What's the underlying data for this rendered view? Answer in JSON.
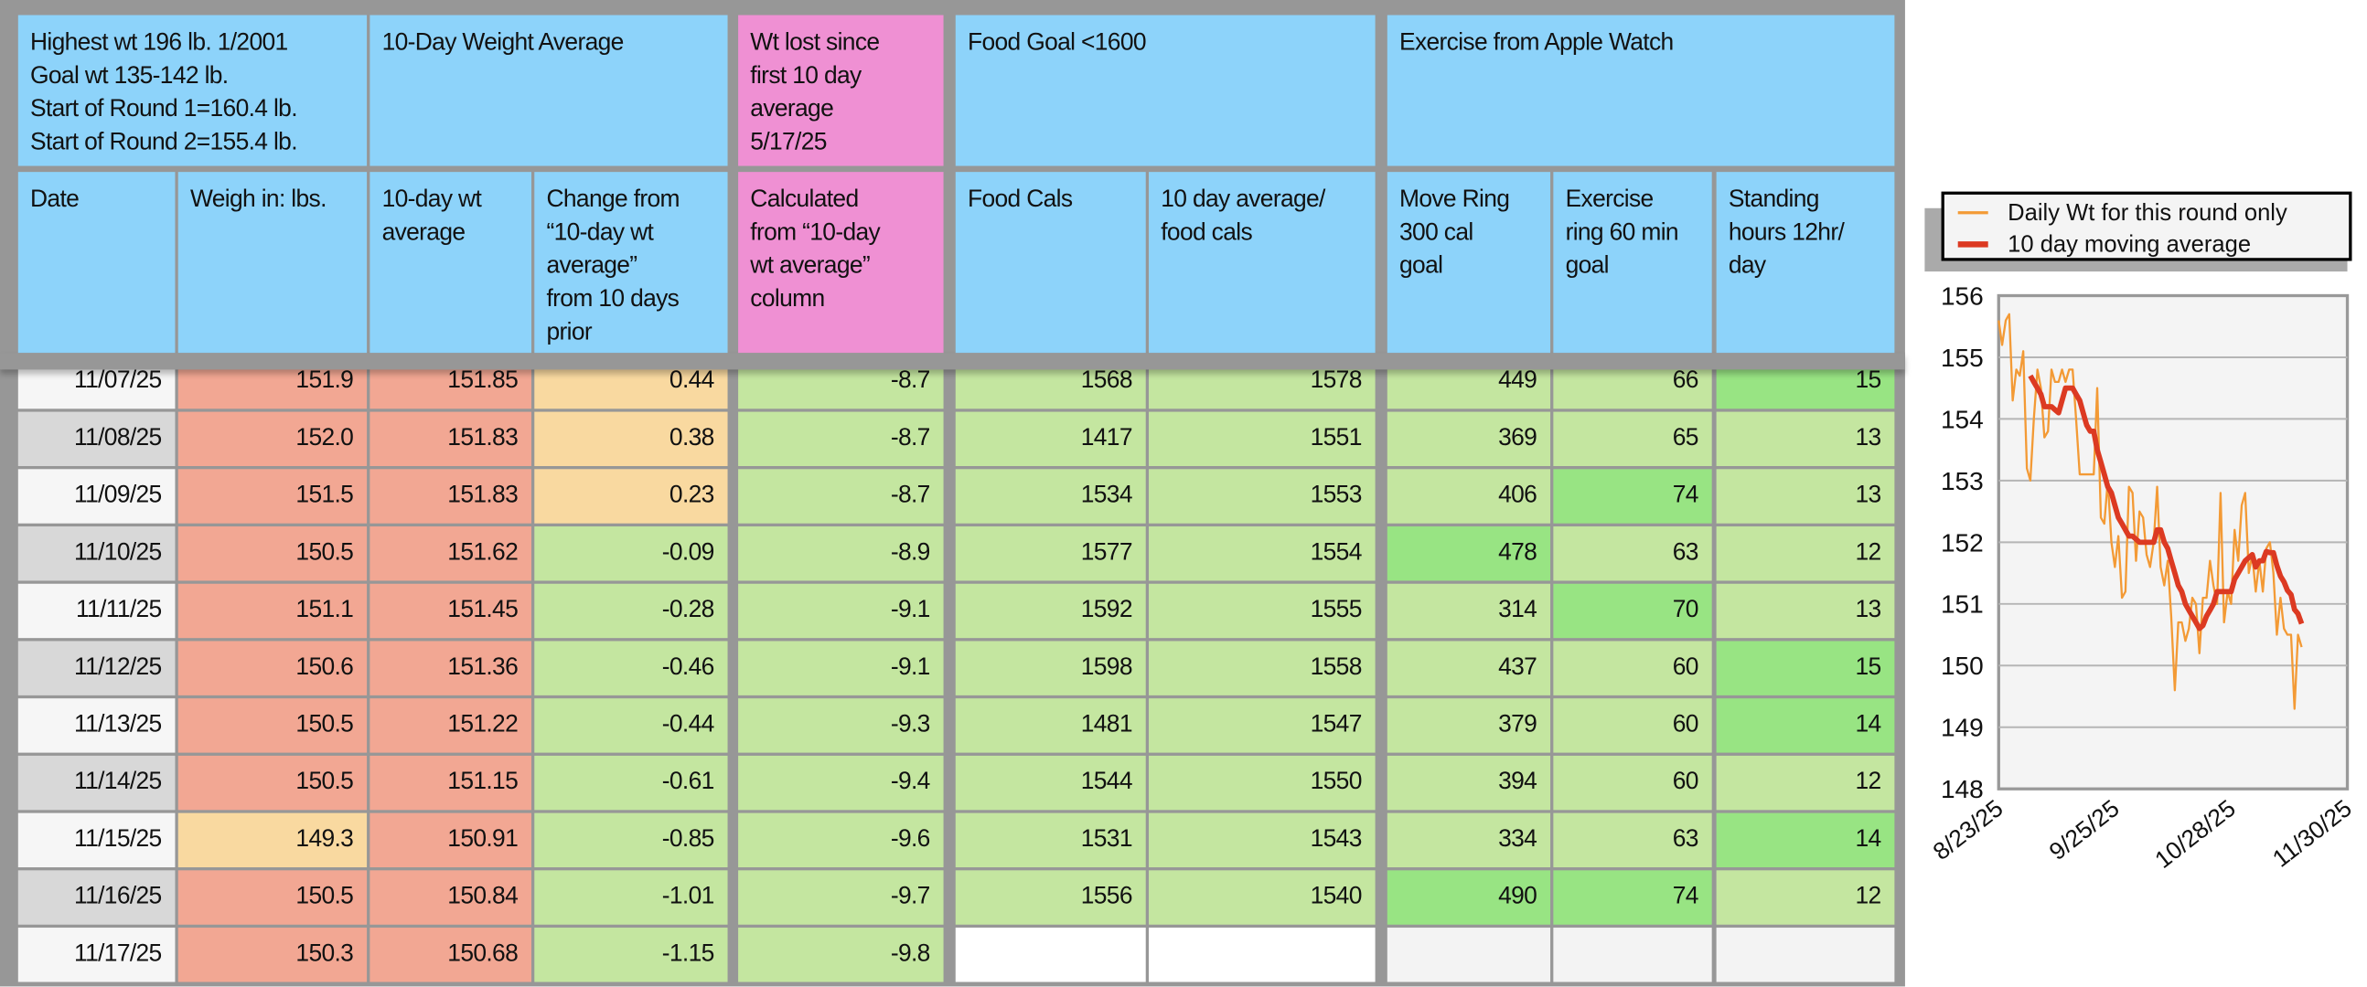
{
  "colors": {
    "header": "#8dd3fa",
    "header_pink": "#ef90d3",
    "salmon": "#f2a793",
    "yellow": "#f9d9a0",
    "green": "#c4e6a0",
    "bright_green": "#98e483",
    "date_light": "#f6f6f6",
    "date_gray": "#d8d8d8",
    "empty_white": "#ffffff",
    "empty_gray": "#f3f3f3"
  },
  "header_groups": [
    {
      "key": "summary",
      "text": "Highest wt 196 lb.  1/2001\nGoal wt 135-142 lb.\nStart of Round 1=160.4 lb.\nStart of Round 2=155.4 lb."
    },
    {
      "key": "avg10",
      "text": "10-Day Weight Average"
    },
    {
      "key": "lost",
      "text": "Wt lost since\nfirst 10 day\naverage\n5/17/25"
    },
    {
      "key": "food",
      "text": "Food Goal <1600"
    },
    {
      "key": "exercise",
      "text": "Exercise from Apple Watch"
    }
  ],
  "columns": [
    {
      "key": "date",
      "label": "Date"
    },
    {
      "key": "weigh",
      "label": "Weigh in: lbs."
    },
    {
      "key": "avg",
      "label": "10-day wt\naverage"
    },
    {
      "key": "change",
      "label": "Change from\n“10-day wt\naverage”\nfrom 10 days\nprior"
    },
    {
      "key": "calc",
      "label": "Calculated\nfrom “10-day\nwt average”\ncolumn"
    },
    {
      "key": "food",
      "label": "Food Cals"
    },
    {
      "key": "favg",
      "label": "10 day average/\nfood cals"
    },
    {
      "key": "move",
      "label": "Move Ring\n300 cal\ngoal"
    },
    {
      "key": "ex",
      "label": "Exercise\nring 60 min\ngoal"
    },
    {
      "key": "stand",
      "label": "Standing\nhours 12hr/\nday"
    }
  ],
  "rows": [
    {
      "date": "11/07/25",
      "weigh": "151.9",
      "avg": "151.85",
      "change": "0.44",
      "calc": "-8.7",
      "food": "1568",
      "favg": "1578",
      "move": "449",
      "ex": "66",
      "stand": "15",
      "fills": {
        "change": "yellow",
        "stand": "bright_green"
      }
    },
    {
      "date": "11/08/25",
      "weigh": "152.0",
      "avg": "151.83",
      "change": "0.38",
      "calc": "-8.7",
      "food": "1417",
      "favg": "1551",
      "move": "369",
      "ex": "65",
      "stand": "13",
      "fills": {
        "change": "yellow"
      }
    },
    {
      "date": "11/09/25",
      "weigh": "151.5",
      "avg": "151.83",
      "change": "0.23",
      "calc": "-8.7",
      "food": "1534",
      "favg": "1553",
      "move": "406",
      "ex": "74",
      "stand": "13",
      "fills": {
        "change": "yellow",
        "ex": "bright_green"
      }
    },
    {
      "date": "11/10/25",
      "weigh": "150.5",
      "avg": "151.62",
      "change": "-0.09",
      "calc": "-8.9",
      "food": "1577",
      "favg": "1554",
      "move": "478",
      "ex": "63",
      "stand": "12",
      "fills": {
        "move": "bright_green"
      }
    },
    {
      "date": "11/11/25",
      "weigh": "151.1",
      "avg": "151.45",
      "change": "-0.28",
      "calc": "-9.1",
      "food": "1592",
      "favg": "1555",
      "move": "314",
      "ex": "70",
      "stand": "13",
      "fills": {
        "ex": "bright_green"
      }
    },
    {
      "date": "11/12/25",
      "weigh": "150.6",
      "avg": "151.36",
      "change": "-0.46",
      "calc": "-9.1",
      "food": "1598",
      "favg": "1558",
      "move": "437",
      "ex": "60",
      "stand": "15",
      "fills": {
        "stand": "bright_green"
      }
    },
    {
      "date": "11/13/25",
      "weigh": "150.5",
      "avg": "151.22",
      "change": "-0.44",
      "calc": "-9.3",
      "food": "1481",
      "favg": "1547",
      "move": "379",
      "ex": "60",
      "stand": "14",
      "fills": {
        "stand": "bright_green"
      }
    },
    {
      "date": "11/14/25",
      "weigh": "150.5",
      "avg": "151.15",
      "change": "-0.61",
      "calc": "-9.4",
      "food": "1544",
      "favg": "1550",
      "move": "394",
      "ex": "60",
      "stand": "12",
      "fills": {}
    },
    {
      "date": "11/15/25",
      "weigh": "149.3",
      "avg": "150.91",
      "change": "-0.85",
      "calc": "-9.6",
      "food": "1531",
      "favg": "1543",
      "move": "334",
      "ex": "63",
      "stand": "14",
      "fills": {
        "weigh": "yellow",
        "stand": "bright_green"
      }
    },
    {
      "date": "11/16/25",
      "weigh": "150.5",
      "avg": "150.84",
      "change": "-1.01",
      "calc": "-9.7",
      "food": "1556",
      "favg": "1540",
      "move": "490",
      "ex": "74",
      "stand": "12",
      "fills": {
        "move": "bright_green",
        "ex": "bright_green"
      }
    },
    {
      "date": "11/17/25",
      "weigh": "150.3",
      "avg": "150.68",
      "change": "-1.15",
      "calc": "-9.8",
      "food": "",
      "favg": "",
      "move": "",
      "ex": "",
      "stand": "",
      "fills": {
        "food": "empty_white",
        "favg": "empty_white",
        "move": "empty_gray",
        "ex": "empty_gray",
        "stand": "empty_gray"
      }
    }
  ],
  "chart_data": {
    "type": "line",
    "title": "",
    "xlabel": "",
    "ylabel": "",
    "ylim": [
      148,
      156
    ],
    "yticks": [
      "156",
      "155",
      "154",
      "153",
      "152",
      "151",
      "150",
      "149",
      "148"
    ],
    "xlim": [
      "8/23/25",
      "11/30/25"
    ],
    "xticks": [
      "8/23/25",
      "9/25/25",
      "10/28/25",
      "11/30/25"
    ],
    "grid": true,
    "legend_placement": "top",
    "x": [
      "8/23/25",
      "8/24/25",
      "8/25/25",
      "8/26/25",
      "8/27/25",
      "8/28/25",
      "8/29/25",
      "8/30/25",
      "8/31/25",
      "9/1/25",
      "9/2/25",
      "9/3/25",
      "9/4/25",
      "9/5/25",
      "9/6/25",
      "9/7/25",
      "9/8/25",
      "9/9/25",
      "9/10/25",
      "9/11/25",
      "9/12/25",
      "9/13/25",
      "9/14/25",
      "9/15/25",
      "9/16/25",
      "9/17/25",
      "9/18/25",
      "9/19/25",
      "9/20/25",
      "9/21/25",
      "9/22/25",
      "9/23/25",
      "9/24/25",
      "9/25/25",
      "9/26/25",
      "9/27/25",
      "9/28/25",
      "9/29/25",
      "9/30/25",
      "10/1/25",
      "10/2/25",
      "10/3/25",
      "10/4/25",
      "10/5/25",
      "10/6/25",
      "10/7/25",
      "10/8/25",
      "10/9/25",
      "10/10/25",
      "10/11/25",
      "10/12/25",
      "10/13/25",
      "10/14/25",
      "10/15/25",
      "10/16/25",
      "10/17/25",
      "10/18/25",
      "10/19/25",
      "10/20/25",
      "10/21/25",
      "10/22/25",
      "10/23/25",
      "10/24/25",
      "10/25/25",
      "10/26/25",
      "10/27/25",
      "10/28/25",
      "10/29/25",
      "10/30/25",
      "10/31/25",
      "11/1/25",
      "11/2/25",
      "11/3/25",
      "11/4/25",
      "11/5/25",
      "11/6/25",
      "11/7/25",
      "11/8/25",
      "11/9/25",
      "11/10/25",
      "11/11/25",
      "11/12/25",
      "11/13/25",
      "11/14/25",
      "11/15/25",
      "11/16/25",
      "11/17/25"
    ],
    "series": [
      {
        "name": "Daily Wt for this round only",
        "color": "#f39a35",
        "values": [
          155.6,
          155.2,
          155.6,
          155.7,
          154.3,
          154.8,
          154.7,
          155.1,
          153.2,
          153.0,
          154.0,
          154.8,
          154.5,
          153.7,
          153.8,
          154.8,
          154.6,
          154.6,
          154.8,
          154.6,
          154.8,
          154.8,
          154.0,
          153.1,
          153.1,
          153.1,
          153.1,
          153.1,
          154.5,
          152.4,
          152.3,
          153.0,
          152.0,
          151.6,
          152.1,
          151.1,
          151.2,
          152.9,
          152.8,
          151.7,
          152.5,
          152.4,
          151.8,
          151.6,
          152.0,
          152.9,
          151.6,
          151.3,
          151.7,
          150.8,
          149.6,
          150.7,
          150.7,
          150.4,
          150.6,
          151.1,
          151.0,
          150.2,
          151.1,
          151.1,
          151.7,
          151.3,
          151.0,
          152.8,
          150.7,
          151.2,
          151.0,
          152.2,
          151.7,
          152.6,
          152.8,
          151.5,
          151.8,
          151.2,
          151.7,
          151.2,
          151.9,
          152.0,
          151.5,
          150.5,
          151.1,
          150.6,
          150.5,
          150.5,
          149.3,
          150.5,
          150.3
        ]
      },
      {
        "name": "10 day moving average",
        "color": "#dc3a22",
        "values": [
          null,
          null,
          null,
          null,
          null,
          null,
          null,
          null,
          null,
          154.7,
          154.6,
          154.5,
          154.4,
          154.2,
          154.2,
          154.2,
          154.15,
          154.1,
          154.3,
          154.5,
          154.5,
          154.5,
          154.4,
          154.3,
          154.1,
          153.9,
          153.8,
          153.8,
          153.5,
          153.3,
          153.1,
          152.9,
          152.8,
          152.6,
          152.4,
          152.3,
          152.2,
          152.1,
          152.1,
          152.05,
          152.0,
          152.0,
          152.0,
          152.0,
          152.0,
          152.2,
          152.2,
          152.0,
          151.9,
          151.7,
          151.5,
          151.3,
          151.2,
          151.0,
          150.9,
          150.8,
          150.7,
          150.6,
          150.65,
          150.8,
          150.9,
          151.0,
          151.2,
          151.2,
          151.2,
          151.2,
          151.2,
          151.4,
          151.5,
          151.6,
          151.7,
          151.75,
          151.8,
          151.6,
          151.7,
          151.7,
          151.85,
          151.83,
          151.83,
          151.62,
          151.45,
          151.36,
          151.22,
          151.15,
          150.91,
          150.84,
          150.68
        ]
      }
    ]
  }
}
